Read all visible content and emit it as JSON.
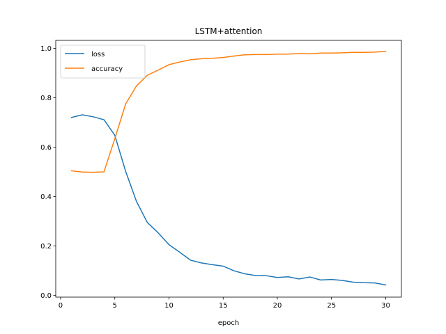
{
  "chart_data": {
    "type": "line",
    "title": "LSTM+attention",
    "xlabel": "epoch",
    "ylabel": "",
    "xlim": [
      -0.45,
      31.45
    ],
    "ylim": [
      -0.0075,
      1.0325
    ],
    "xticks": [
      0,
      5,
      10,
      15,
      20,
      25,
      30
    ],
    "yticks": [
      0.0,
      0.2,
      0.4,
      0.6,
      0.8,
      1.0
    ],
    "ytick_labels": [
      "0.0",
      "0.2",
      "0.4",
      "0.6",
      "0.8",
      "1.0"
    ],
    "grid": false,
    "legend_position": "top-left",
    "x": [
      1,
      2,
      3,
      4,
      5,
      6,
      7,
      8,
      9,
      10,
      11,
      12,
      13,
      14,
      15,
      16,
      17,
      18,
      19,
      20,
      21,
      22,
      23,
      24,
      25,
      26,
      27,
      28,
      29,
      30
    ],
    "series": [
      {
        "name": "loss",
        "color": "#1f77b4",
        "values": [
          0.72,
          0.731,
          0.723,
          0.711,
          0.648,
          0.502,
          0.38,
          0.295,
          0.253,
          0.205,
          0.174,
          0.142,
          0.131,
          0.124,
          0.118,
          0.099,
          0.087,
          0.08,
          0.079,
          0.072,
          0.075,
          0.066,
          0.074,
          0.062,
          0.064,
          0.06,
          0.053,
          0.051,
          0.05,
          0.042
        ]
      },
      {
        "name": "accuracy",
        "color": "#ff7f0e",
        "values": [
          0.504,
          0.499,
          0.498,
          0.5,
          0.634,
          0.775,
          0.848,
          0.891,
          0.912,
          0.934,
          0.945,
          0.954,
          0.958,
          0.96,
          0.963,
          0.969,
          0.974,
          0.975,
          0.975,
          0.977,
          0.977,
          0.979,
          0.978,
          0.981,
          0.981,
          0.982,
          0.984,
          0.984,
          0.985,
          0.988
        ]
      }
    ]
  }
}
